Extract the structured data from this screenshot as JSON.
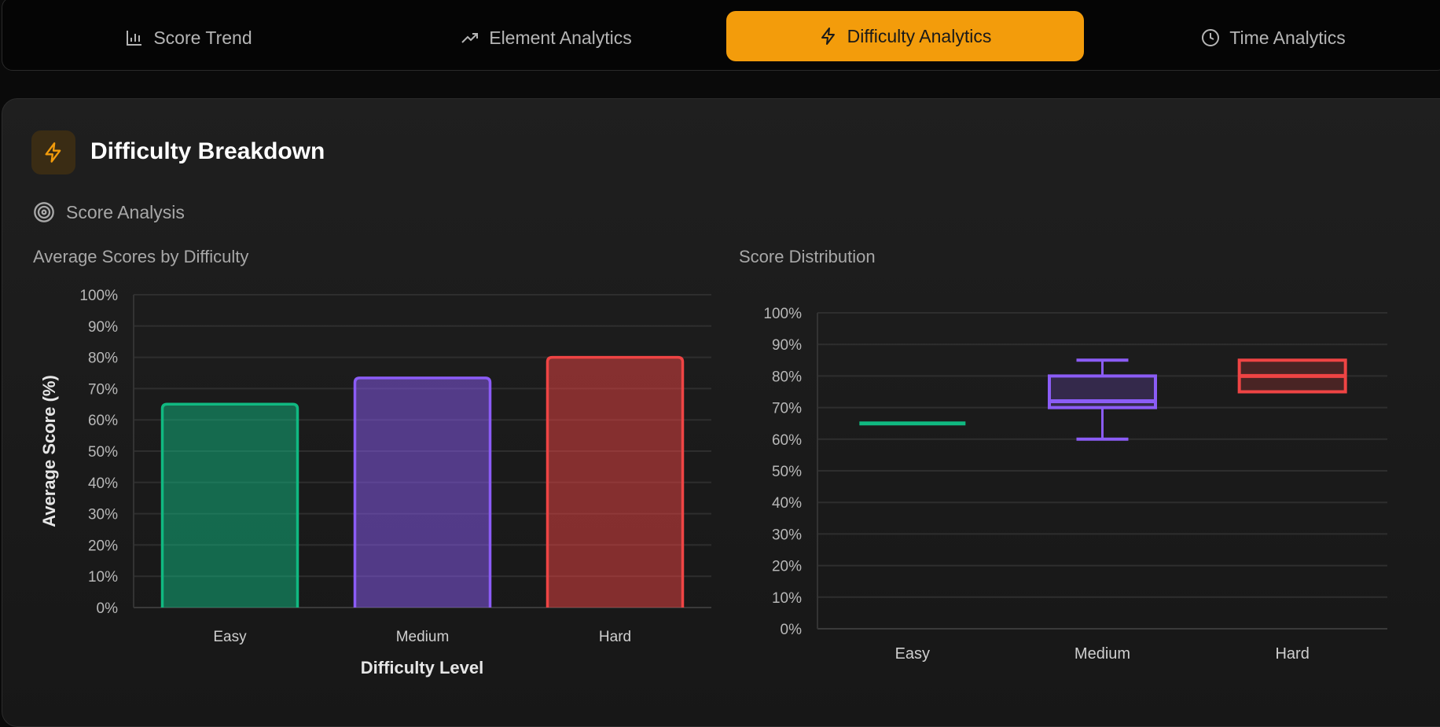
{
  "tabs": [
    {
      "label": "Score Trend",
      "icon": "bar-chart-icon",
      "active": false
    },
    {
      "label": "Element Analytics",
      "icon": "trending-up-icon",
      "active": false
    },
    {
      "label": "Difficulty Analytics",
      "icon": "lightning-icon",
      "active": true
    },
    {
      "label": "Time Analytics",
      "icon": "clock-icon",
      "active": false
    }
  ],
  "section": {
    "title": "Difficulty Breakdown",
    "icon": "lightning-icon",
    "subtitle": "Score Analysis",
    "subtitle_icon": "target-icon",
    "accent": "#f39c0b"
  },
  "chart_data": [
    {
      "type": "bar",
      "title": "Average Scores by Difficulty",
      "categories": [
        "Easy",
        "Medium",
        "Hard"
      ],
      "values": [
        65,
        73.4,
        80
      ],
      "colors": [
        "#10b981",
        "#8b5cf6",
        "#ef4444"
      ],
      "xlabel": "Difficulty Level",
      "ylabel": "Average Score (%)",
      "ylim": [
        0,
        100
      ],
      "yticks": [
        "0%",
        "10%",
        "20%",
        "30%",
        "40%",
        "50%",
        "60%",
        "70%",
        "80%",
        "90%",
        "100%"
      ],
      "grid": true
    },
    {
      "type": "box",
      "title": "Score Distribution",
      "categories": [
        "Easy",
        "Medium",
        "Hard"
      ],
      "series": [
        {
          "min": 65,
          "q1": 65,
          "median": 65,
          "q3": 65,
          "max": 65
        },
        {
          "min": 60,
          "q1": 70,
          "median": 72,
          "q3": 80,
          "max": 85
        },
        {
          "min": 75,
          "q1": 75,
          "median": 80,
          "q3": 85,
          "max": 85
        }
      ],
      "colors": [
        "#10b981",
        "#8b5cf6",
        "#ef4444"
      ],
      "ylim": [
        0,
        100
      ],
      "yticks": [
        "0%",
        "10%",
        "20%",
        "30%",
        "40%",
        "50%",
        "60%",
        "70%",
        "80%",
        "90%",
        "100%"
      ],
      "grid": true
    }
  ]
}
